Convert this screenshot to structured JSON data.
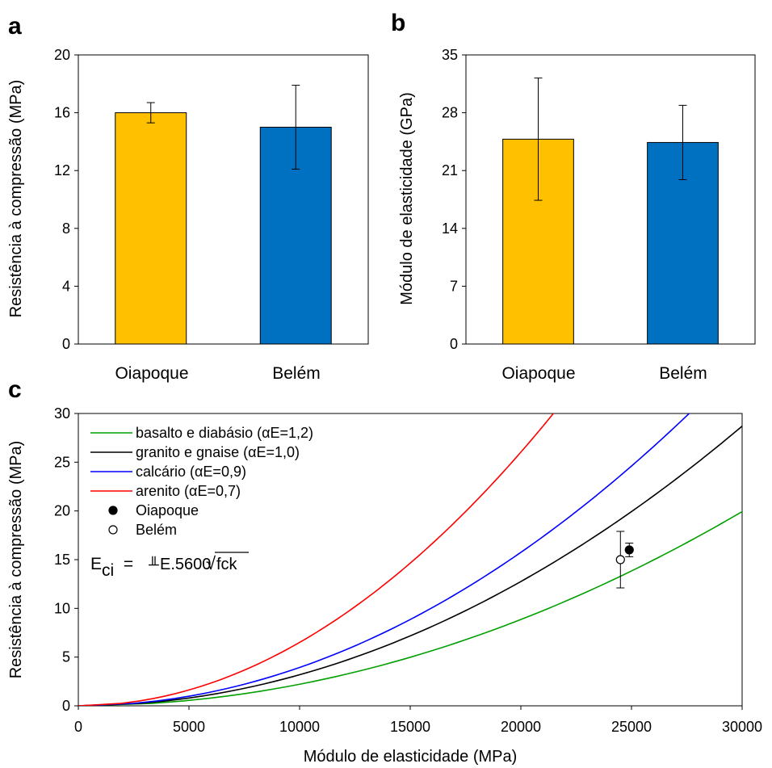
{
  "chart_data": [
    {
      "panel_label": "a",
      "type": "bar",
      "categories": [
        "Oiapoque",
        "Belém"
      ],
      "values": [
        16.0,
        15.0
      ],
      "errors": [
        0.7,
        2.9
      ],
      "colors": [
        "#FFC000",
        "#0070C0"
      ],
      "ylabel": "Resistência  à compressão  (MPa)",
      "ylim": [
        0,
        20
      ],
      "yticks": [
        "0",
        "4",
        "8",
        "12",
        "16",
        "20"
      ],
      "grid": false
    },
    {
      "panel_label": "b",
      "type": "bar",
      "categories": [
        "Oiapoque",
        "Belém"
      ],
      "values": [
        24.8,
        24.4
      ],
      "errors": [
        7.4,
        4.5
      ],
      "colors": [
        "#FFC000",
        "#0070C0"
      ],
      "ylabel": "Módulo  de elasticidade  (GPa)",
      "ylim": [
        0,
        35
      ],
      "yticks": [
        "0",
        "7",
        "14",
        "21",
        "28",
        "35"
      ],
      "grid": false
    },
    {
      "panel_label": "c",
      "type": "line",
      "xlabel": "Módulo  de elasticidade  (MPa)",
      "ylabel": "Resistência  à compressão  (MPa)",
      "xlim": [
        0,
        30000
      ],
      "ylim": [
        0,
        30
      ],
      "xticks": [
        "0",
        "5000",
        "10000",
        "15000",
        "20000",
        "25000",
        "30000"
      ],
      "yticks": [
        "0",
        "5",
        "10",
        "15",
        "20",
        "25",
        "30"
      ],
      "grid": false,
      "legend_position": "top-left",
      "formula_parts": [
        "E",
        "ci",
        " = ",
        "╨",
        "E.5600",
        "√",
        "fck"
      ],
      "series": [
        {
          "name": "basalto e diabásio (αE=1,2)",
          "color": "#00A000",
          "alpha": 1.2
        },
        {
          "name": "granito e gnaise (αE=1,0)",
          "color": "#000000",
          "alpha": 1.0
        },
        {
          "name": "calcário  (αE=0,9)",
          "color": "#0000FF",
          "alpha": 0.9
        },
        {
          "name": "arenito (αE=0,7)",
          "color": "#FF0000",
          "alpha": 0.7
        }
      ],
      "points": [
        {
          "name": "Oiapoque",
          "x": 24900,
          "y": 16.0,
          "y_error": 0.7,
          "fill": "#000000"
        },
        {
          "name": "Belém",
          "x": 24500,
          "y": 15.0,
          "y_error": 2.9,
          "fill": "#ffffff"
        }
      ]
    }
  ]
}
